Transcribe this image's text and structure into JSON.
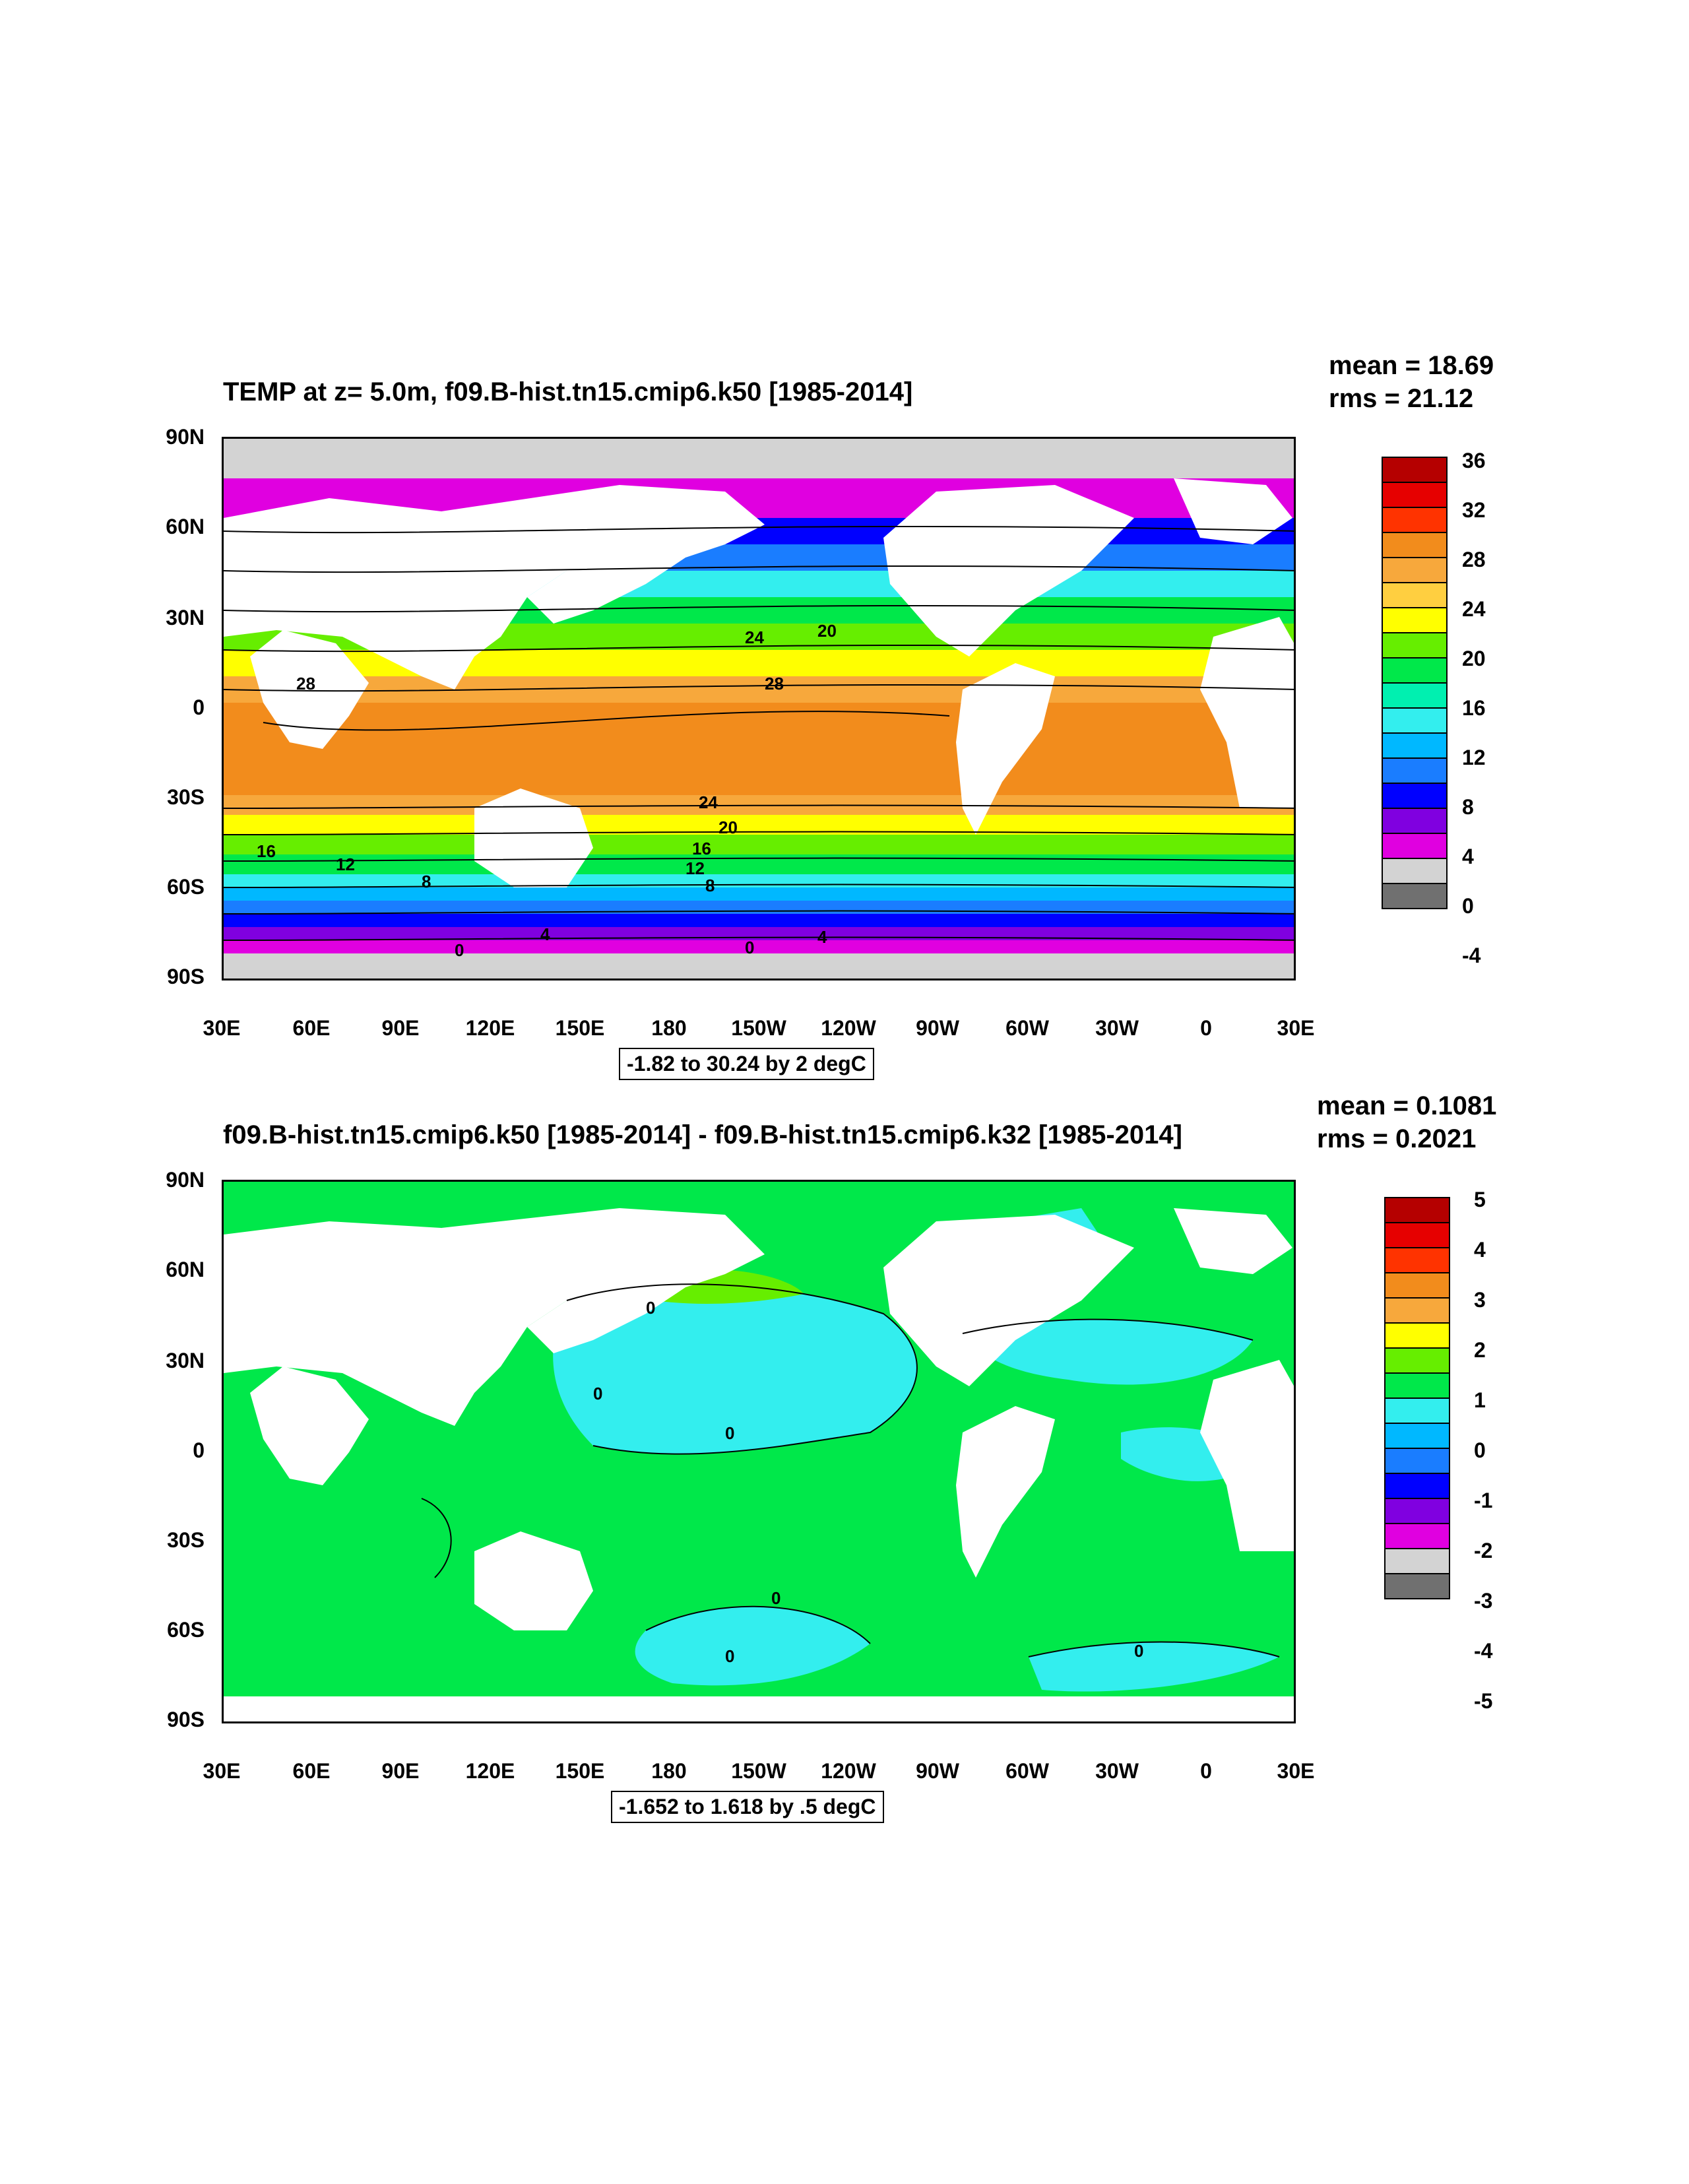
{
  "panels": [
    {
      "title": "TEMP at z=   5.0m, f09.B-hist.tn15.cmip6.k50 [1985-2014]",
      "mean": "mean = 18.69",
      "rms": "rms = 21.12",
      "range": "-1.82 to 30.24 by 2 degC",
      "lat_labels": [
        "90N",
        "60N",
        "30N",
        "0",
        "30S",
        "60S",
        "90S"
      ],
      "lon_labels": [
        "30E",
        "60E",
        "90E",
        "120E",
        "150E",
        "180",
        "150W",
        "120W",
        "90W",
        "60W",
        "30W",
        "0",
        "30E"
      ],
      "colorbar": {
        "labels": [
          "36",
          "32",
          "28",
          "24",
          "20",
          "16",
          "12",
          "8",
          "4",
          "0",
          "-4"
        ],
        "colors": [
          "#b50000",
          "#e60000",
          "#ff3300",
          "#f28c1c",
          "#f7a83c",
          "#ffcf40",
          "#ffff00",
          "#66ee00",
          "#00e84a",
          "#00f0b0",
          "#33eeee",
          "#00b8ff",
          "#1a7dff",
          "#0000ff",
          "#8000e0",
          "#e000e0",
          "#d3d3d3",
          "#707070"
        ]
      },
      "contour_labels": [
        "28",
        "24",
        "20",
        "28",
        "24",
        "20",
        "16",
        "12",
        "8",
        "16",
        "12",
        "8",
        "0",
        "4",
        "0",
        "4"
      ]
    },
    {
      "title": "f09.B-hist.tn15.cmip6.k50 [1985-2014] - f09.B-hist.tn15.cmip6.k32 [1985-2014]",
      "mean": "mean = 0.1081",
      "rms": "rms = 0.2021",
      "range": "-1.652 to 1.618 by .5 degC",
      "lat_labels": [
        "90N",
        "60N",
        "30N",
        "0",
        "30S",
        "60S",
        "90S"
      ],
      "lon_labels": [
        "30E",
        "60E",
        "90E",
        "120E",
        "150E",
        "180",
        "150W",
        "120W",
        "90W",
        "60W",
        "30W",
        "0",
        "30E"
      ],
      "colorbar": {
        "labels": [
          "5",
          "4",
          "3",
          "2",
          "1",
          "0",
          "-1",
          "-2",
          "-3",
          "-4",
          "-5"
        ],
        "colors": [
          "#b50000",
          "#e60000",
          "#ff3300",
          "#f28c1c",
          "#f7a83c",
          "#ffff00",
          "#66ee00",
          "#00e84a",
          "#33eeee",
          "#00b8ff",
          "#1a7dff",
          "#0000ff",
          "#8000e0",
          "#e000e0",
          "#d3d3d3",
          "#707070"
        ]
      },
      "contour_labels": [
        "0",
        "0",
        "0",
        "0",
        "0",
        "0"
      ]
    }
  ]
}
